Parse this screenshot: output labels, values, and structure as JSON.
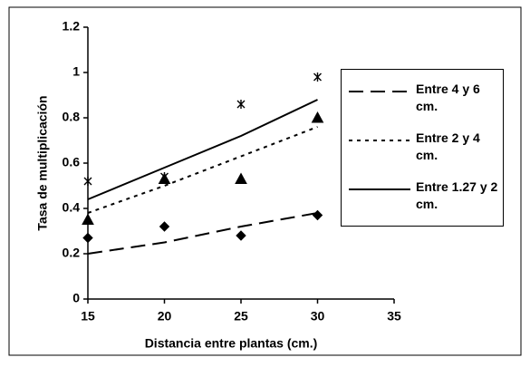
{
  "chart_data": {
    "type": "scatter",
    "x_label": "Distancia entre plantas (cm.)",
    "y_label": "Tasa de multiplicación",
    "x": [
      15,
      20,
      25,
      30
    ],
    "xlim": [
      15,
      35
    ],
    "xticks": [
      15,
      20,
      25,
      30,
      35
    ],
    "ylim": [
      0,
      1.2
    ],
    "yticks": [
      0,
      0.2,
      0.4,
      0.6,
      0.8,
      1,
      1.2
    ],
    "series": [
      {
        "name": "Entre 4 y 6 cm.",
        "color": "#000000",
        "marker": "diamond",
        "dash": "dashed",
        "values": [
          0.27,
          0.32,
          0.28,
          0.37
        ],
        "trend": [
          0.2,
          0.25,
          0.32,
          0.38
        ]
      },
      {
        "name": "Entre 2 y 4 cm.",
        "color": "#000000",
        "marker": "triangle",
        "dash": "dotted",
        "values": [
          0.35,
          0.53,
          0.53,
          0.8
        ],
        "trend": [
          0.38,
          0.5,
          0.63,
          0.76
        ]
      },
      {
        "name": "Entre 1.27 y 2 cm.",
        "color": "#000000",
        "marker": "star",
        "dash": "solid",
        "values": [
          0.52,
          0.54,
          0.86,
          0.98
        ],
        "trend": [
          0.44,
          0.58,
          0.72,
          0.88
        ]
      }
    ]
  }
}
